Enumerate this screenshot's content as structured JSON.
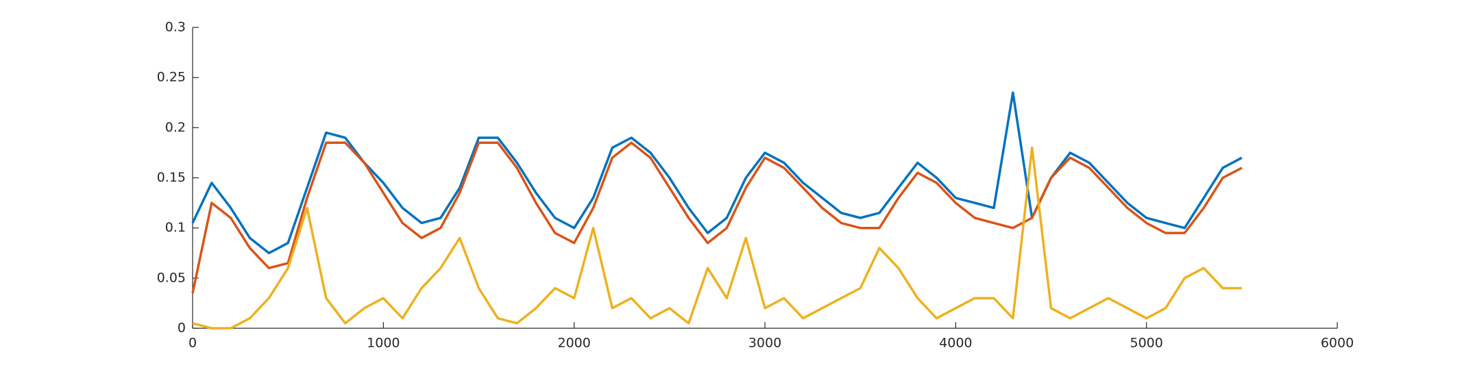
{
  "chart_data": {
    "type": "line",
    "x": [
      0,
      100,
      200,
      300,
      400,
      500,
      600,
      700,
      800,
      900,
      1000,
      1100,
      1200,
      1300,
      1400,
      1500,
      1600,
      1700,
      1800,
      1900,
      2000,
      2100,
      2200,
      2300,
      2400,
      2500,
      2600,
      2700,
      2800,
      2900,
      3000,
      3100,
      3200,
      3300,
      3400,
      3500,
      3600,
      3700,
      3800,
      3900,
      4000,
      4100,
      4200,
      4300,
      4400,
      4500,
      4600,
      4700,
      4800,
      4900,
      5000,
      5100,
      5200,
      5300,
      5400,
      5500
    ],
    "series": [
      {
        "color": "#0072bd",
        "values": [
          0.105,
          0.145,
          0.12,
          0.09,
          0.075,
          0.085,
          0.14,
          0.195,
          0.19,
          0.165,
          0.145,
          0.12,
          0.105,
          0.11,
          0.14,
          0.19,
          0.19,
          0.165,
          0.135,
          0.11,
          0.1,
          0.13,
          0.18,
          0.19,
          0.175,
          0.15,
          0.12,
          0.095,
          0.11,
          0.15,
          0.175,
          0.165,
          0.145,
          0.13,
          0.115,
          0.11,
          0.115,
          0.14,
          0.165,
          0.15,
          0.13,
          0.125,
          0.12,
          0.235,
          0.11,
          0.15,
          0.175,
          0.165,
          0.145,
          0.125,
          0.11,
          0.105,
          0.1,
          0.13,
          0.16,
          0.17
        ]
      },
      {
        "color": "#d95319",
        "values": [
          0.035,
          0.125,
          0.11,
          0.08,
          0.06,
          0.065,
          0.13,
          0.185,
          0.185,
          0.165,
          0.135,
          0.105,
          0.09,
          0.1,
          0.135,
          0.185,
          0.185,
          0.16,
          0.125,
          0.095,
          0.085,
          0.12,
          0.17,
          0.185,
          0.17,
          0.14,
          0.11,
          0.085,
          0.1,
          0.14,
          0.17,
          0.16,
          0.14,
          0.12,
          0.105,
          0.1,
          0.1,
          0.13,
          0.155,
          0.145,
          0.125,
          0.11,
          0.105,
          0.1,
          0.11,
          0.15,
          0.17,
          0.16,
          0.14,
          0.12,
          0.105,
          0.095,
          0.095,
          0.12,
          0.15,
          0.16
        ]
      },
      {
        "color": "#edb120",
        "values": [
          0.005,
          0,
          0,
          0.01,
          0.03,
          0.06,
          0.12,
          0.03,
          0.005,
          0.02,
          0.03,
          0.01,
          0.04,
          0.06,
          0.09,
          0.04,
          0.01,
          0.005,
          0.02,
          0.04,
          0.03,
          0.1,
          0.02,
          0.03,
          0.01,
          0.02,
          0.005,
          0.06,
          0.03,
          0.09,
          0.02,
          0.03,
          0.01,
          0.02,
          0.03,
          0.04,
          0.08,
          0.06,
          0.03,
          0.01,
          0.02,
          0.03,
          0.03,
          0.01,
          0.18,
          0.02,
          0.01,
          0.02,
          0.03,
          0.02,
          0.01,
          0.02,
          0.05,
          0.06,
          0.04,
          0.04
        ]
      }
    ],
    "xlim": [
      0,
      6000
    ],
    "xticks": [
      0,
      1000,
      2000,
      3000,
      4000,
      5000,
      6000
    ],
    "ylim": [
      0,
      0.3
    ],
    "yticks": [
      0,
      0.05,
      0.1,
      0.15,
      0.2,
      0.25,
      0.3
    ]
  }
}
